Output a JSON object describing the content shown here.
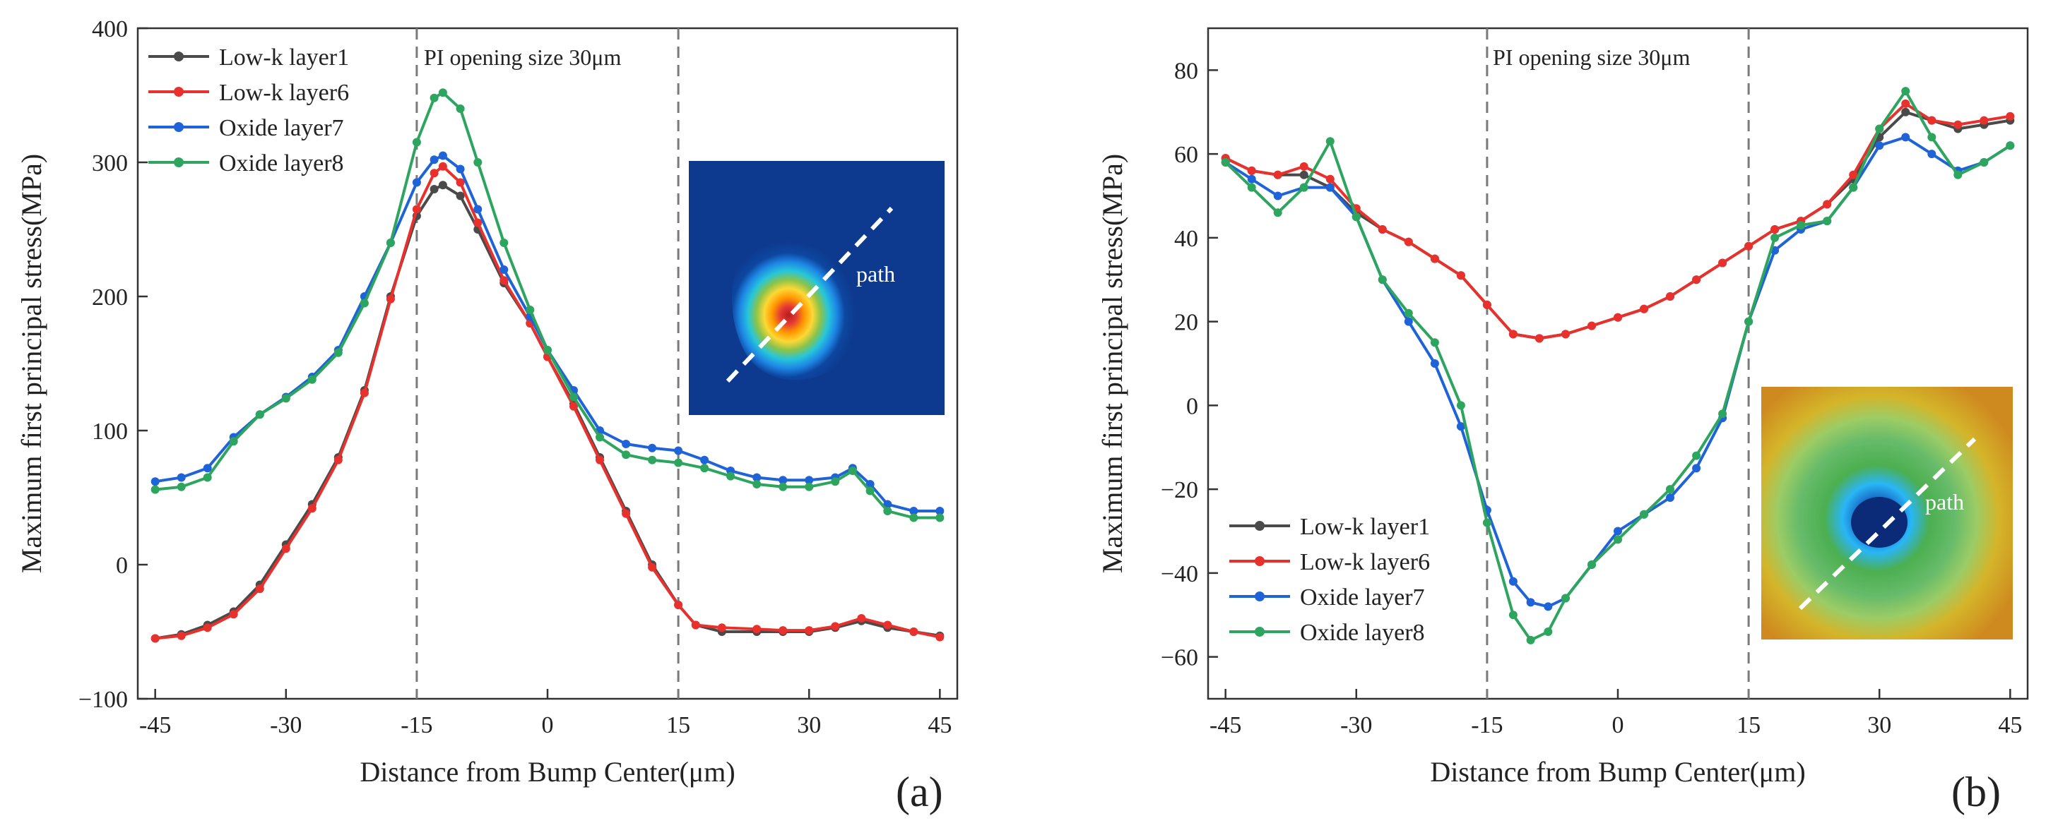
{
  "colors": {
    "low_k_layer1": "#4a4a4a",
    "low_k_layer6": "#e8312d",
    "oxide_layer7": "#1f63d8",
    "oxide_layer8": "#2ea55e",
    "opening_line": "#7a7a7a"
  },
  "chart_data": [
    {
      "type": "line",
      "panel_tag": "(a)",
      "annotation": "PI opening size 30μm",
      "inset_label": "path",
      "xlabel": "Distance from Bump Center(μm)",
      "ylabel": "Maximum first principal stress(MPa)",
      "xlim": [
        -47,
        47
      ],
      "ylim": [
        -100,
        400
      ],
      "xticks": [
        -45,
        -30,
        -15,
        0,
        15,
        30,
        45
      ],
      "xtick_labels": [
        "-45",
        "-30",
        "-15",
        "0",
        "15",
        "30",
        "45"
      ],
      "yticks": [
        -100,
        0,
        100,
        200,
        300,
        400
      ],
      "ytick_labels": [
        "−100",
        "0",
        "100",
        "200",
        "300",
        "400"
      ],
      "opening_lines": [
        -15,
        15
      ],
      "legend_position": "top-left",
      "series": [
        {
          "name": "Low-k layer1",
          "color_key": "low_k_layer1",
          "x": [
            -45,
            -42,
            -39,
            -36,
            -33,
            -30,
            -27,
            -24,
            -21,
            -18,
            -15,
            -13,
            -12,
            -10,
            -8,
            -5,
            -2,
            0,
            3,
            6,
            9,
            12,
            15,
            17,
            20,
            24,
            27,
            30,
            33,
            36,
            39,
            42,
            45
          ],
          "y": [
            -55,
            -52,
            -45,
            -35,
            -15,
            15,
            45,
            80,
            130,
            200,
            260,
            280,
            283,
            275,
            250,
            210,
            180,
            155,
            120,
            80,
            40,
            0,
            -30,
            -45,
            -50,
            -50,
            -50,
            -50,
            -47,
            -42,
            -47,
            -50,
            -53
          ]
        },
        {
          "name": "Low-k layer6",
          "color_key": "low_k_layer6",
          "x": [
            -45,
            -42,
            -39,
            -36,
            -33,
            -30,
            -27,
            -24,
            -21,
            -18,
            -15,
            -13,
            -12,
            -10,
            -8,
            -5,
            -2,
            0,
            3,
            6,
            9,
            12,
            15,
            17,
            20,
            24,
            27,
            30,
            33,
            36,
            39,
            42,
            45
          ],
          "y": [
            -55,
            -53,
            -47,
            -37,
            -18,
            12,
            42,
            78,
            128,
            198,
            265,
            292,
            297,
            285,
            255,
            212,
            180,
            155,
            118,
            78,
            38,
            -2,
            -30,
            -45,
            -47,
            -48,
            -49,
            -49,
            -46,
            -40,
            -45,
            -50,
            -54
          ]
        },
        {
          "name": "Oxide  layer7",
          "color_key": "oxide_layer7",
          "x": [
            -45,
            -42,
            -39,
            -36,
            -33,
            -30,
            -27,
            -24,
            -21,
            -18,
            -15,
            -13,
            -12,
            -10,
            -8,
            -5,
            -2,
            0,
            3,
            6,
            9,
            12,
            15,
            18,
            21,
            24,
            27,
            30,
            33,
            35,
            37,
            39,
            42,
            45
          ],
          "y": [
            62,
            65,
            72,
            95,
            112,
            125,
            140,
            160,
            200,
            240,
            285,
            302,
            305,
            295,
            265,
            220,
            185,
            160,
            130,
            100,
            90,
            87,
            85,
            78,
            70,
            65,
            63,
            63,
            65,
            72,
            60,
            45,
            40,
            40
          ]
        },
        {
          "name": "Oxide  layer8",
          "color_key": "oxide_layer8",
          "x": [
            -45,
            -42,
            -39,
            -36,
            -33,
            -30,
            -27,
            -24,
            -21,
            -18,
            -15,
            -13,
            -12,
            -10,
            -8,
            -5,
            -2,
            0,
            3,
            6,
            9,
            12,
            15,
            18,
            21,
            24,
            27,
            30,
            33,
            35,
            37,
            39,
            42,
            45
          ],
          "y": [
            56,
            58,
            65,
            92,
            112,
            124,
            138,
            158,
            195,
            240,
            315,
            348,
            352,
            340,
            300,
            240,
            190,
            160,
            125,
            95,
            82,
            78,
            76,
            72,
            66,
            60,
            58,
            58,
            62,
            70,
            55,
            40,
            35,
            35
          ]
        }
      ]
    },
    {
      "type": "line",
      "panel_tag": "(b)",
      "annotation": "PI opening size 30μm",
      "inset_label": "path",
      "xlabel": "Distance from Bump Center(μm)",
      "ylabel": "Maximum first principal stress(MPa)",
      "xlim": [
        -47,
        47
      ],
      "ylim": [
        -70,
        90
      ],
      "xticks": [
        -45,
        -30,
        -15,
        0,
        15,
        30,
        45
      ],
      "xtick_labels": [
        "-45",
        "-30",
        "-15",
        "0",
        "15",
        "30",
        "45"
      ],
      "yticks": [
        -60,
        -40,
        -20,
        0,
        20,
        40,
        60,
        80
      ],
      "ytick_labels": [
        "−60",
        "−40",
        "−20",
        "0",
        "20",
        "40",
        "60",
        "80"
      ],
      "opening_lines": [
        -15,
        15
      ],
      "legend_position": "bottom-left",
      "series": [
        {
          "name": "Low-k layer1",
          "color_key": "low_k_layer1",
          "x": [
            -45,
            -42,
            -39,
            -36,
            -33,
            -30,
            -27,
            -24,
            -21,
            -18,
            -15,
            -12,
            -9,
            -6,
            -3,
            0,
            3,
            6,
            9,
            12,
            15,
            18,
            21,
            24,
            27,
            30,
            33,
            36,
            39,
            42,
            45
          ],
          "y": [
            59,
            56,
            55,
            55,
            52,
            46,
            42,
            39,
            35,
            31,
            24,
            17,
            16,
            17,
            19,
            21,
            23,
            26,
            30,
            34,
            38,
            42,
            44,
            48,
            54,
            64,
            70,
            68,
            66,
            67,
            68
          ]
        },
        {
          "name": "Low-k layer6",
          "color_key": "low_k_layer6",
          "x": [
            -45,
            -42,
            -39,
            -36,
            -33,
            -30,
            -27,
            -24,
            -21,
            -18,
            -15,
            -12,
            -9,
            -6,
            -3,
            0,
            3,
            6,
            9,
            12,
            15,
            18,
            21,
            24,
            27,
            30,
            33,
            36,
            39,
            42,
            45
          ],
          "y": [
            59,
            56,
            55,
            57,
            54,
            47,
            42,
            39,
            35,
            31,
            24,
            17,
            16,
            17,
            19,
            21,
            23,
            26,
            30,
            34,
            38,
            42,
            44,
            48,
            55,
            66,
            72,
            68,
            67,
            68,
            69
          ]
        },
        {
          "name": "Oxide  layer7",
          "color_key": "oxide_layer7",
          "x": [
            -45,
            -42,
            -39,
            -36,
            -33,
            -30,
            -27,
            -24,
            -21,
            -18,
            -15,
            -12,
            -10,
            -8,
            -6,
            -3,
            0,
            3,
            6,
            9,
            12,
            15,
            18,
            21,
            24,
            27,
            30,
            33,
            36,
            39,
            42,
            45
          ],
          "y": [
            58,
            54,
            50,
            52,
            52,
            45,
            30,
            20,
            10,
            -5,
            -25,
            -42,
            -47,
            -48,
            -46,
            -38,
            -30,
            -26,
            -22,
            -15,
            -3,
            20,
            37,
            42,
            44,
            52,
            62,
            64,
            60,
            56,
            58,
            62
          ]
        },
        {
          "name": "Oxide  layer8",
          "color_key": "oxide_layer8",
          "x": [
            -45,
            -42,
            -39,
            -36,
            -33,
            -30,
            -27,
            -24,
            -21,
            -18,
            -15,
            -12,
            -10,
            -8,
            -6,
            -3,
            0,
            3,
            6,
            9,
            12,
            15,
            18,
            21,
            24,
            27,
            30,
            33,
            36,
            39,
            42,
            45
          ],
          "y": [
            58,
            52,
            46,
            52,
            63,
            45,
            30,
            22,
            15,
            0,
            -28,
            -50,
            -56,
            -54,
            -46,
            -38,
            -32,
            -26,
            -20,
            -12,
            -2,
            20,
            40,
            43,
            44,
            52,
            66,
            75,
            64,
            55,
            58,
            62
          ]
        }
      ]
    }
  ]
}
